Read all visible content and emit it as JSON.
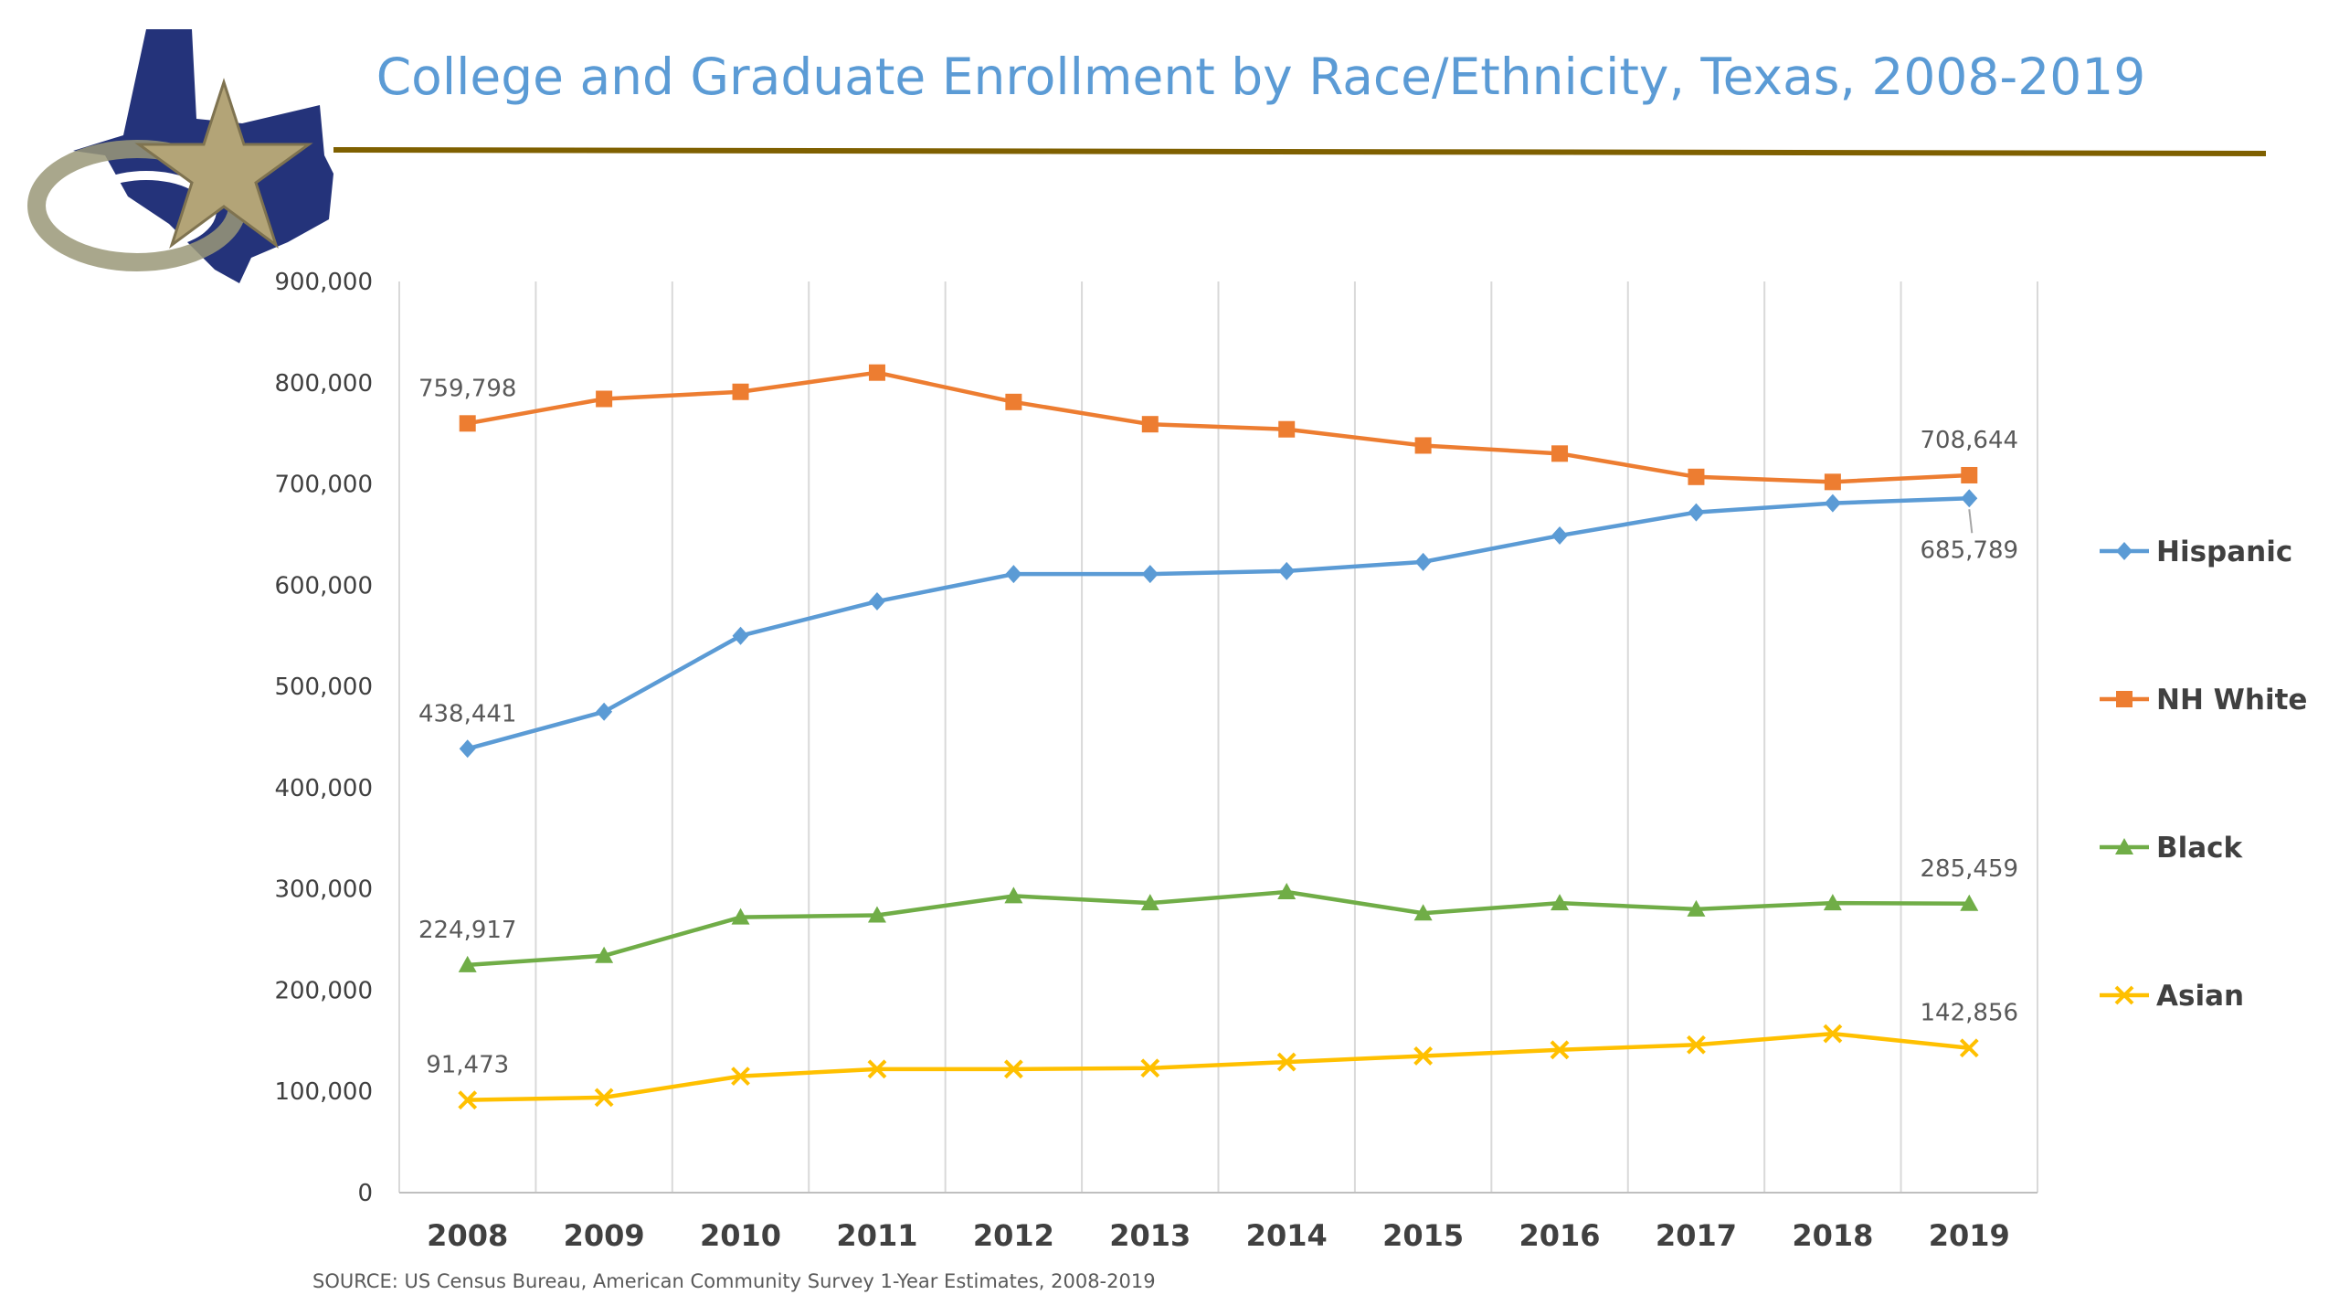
{
  "title": "College and Graduate Enrollment by Race/Ethnicity, Texas, 2008-2019",
  "source": "SOURCE: US Census Bureau, American Community Survey 1-Year Estimates, 2008-2019",
  "chart_data": {
    "type": "line",
    "title": "College and Graduate Enrollment by Race/Ethnicity, Texas, 2008-2019",
    "xlabel": "",
    "ylabel": "",
    "ylim": [
      0,
      900000
    ],
    "yticks": [
      "0",
      "100,000",
      "200,000",
      "300,000",
      "400,000",
      "500,000",
      "600,000",
      "700,000",
      "800,000",
      "900,000"
    ],
    "categories": [
      "2008",
      "2009",
      "2010",
      "2011",
      "2012",
      "2013",
      "2014",
      "2015",
      "2016",
      "2017",
      "2018",
      "2019"
    ],
    "grid": "vertical",
    "legend_position": "right",
    "series": [
      {
        "name": "Hispanic",
        "color": "#5b9bd5",
        "marker": "diamond",
        "values": [
          438441,
          475000,
          550000,
          584000,
          611000,
          611000,
          614000,
          623000,
          649000,
          672000,
          681000,
          685789
        ],
        "labels": {
          "first": "438,441",
          "last": "685,789"
        }
      },
      {
        "name": "NH White",
        "color": "#ed7d31",
        "marker": "square",
        "values": [
          759798,
          784000,
          791000,
          810000,
          781000,
          759000,
          754000,
          738000,
          730000,
          707000,
          702000,
          708644
        ],
        "labels": {
          "first": "759,798",
          "last": "708,644"
        }
      },
      {
        "name": "Black",
        "color": "#70ad47",
        "marker": "triangle",
        "values": [
          224917,
          234000,
          272000,
          274000,
          293000,
          286000,
          297000,
          276000,
          286000,
          280000,
          286000,
          285459
        ],
        "labels": {
          "first": "224,917",
          "last": "285,459"
        }
      },
      {
        "name": "Asian",
        "color": "#ffc000",
        "marker": "x",
        "values": [
          91473,
          94000,
          115000,
          122000,
          122000,
          123000,
          129000,
          135000,
          141000,
          146000,
          157000,
          142856
        ],
        "labels": {
          "first": "91,473",
          "last": "142,856"
        }
      }
    ]
  }
}
